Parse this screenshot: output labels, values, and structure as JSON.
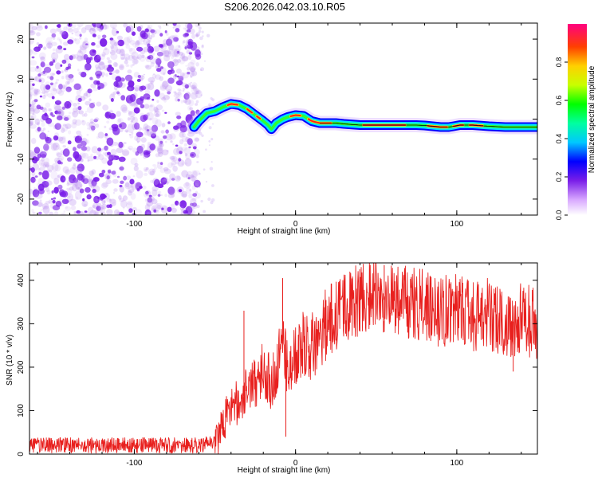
{
  "page_title": "S206.2026.042.03.10.R05",
  "colors": {
    "snr_line": "#e8201e",
    "noise": "#7a1ee8",
    "trace_outline": "#0000ff",
    "trace_fill": "#00e0ff",
    "trace_core_1": "#30ff30",
    "trace_core_2": "#ff2020"
  },
  "chart_data": [
    {
      "type": "heatmap",
      "title": "S206.2026.042.03.10.R05",
      "xlabel": "Height of straight line (km)",
      "ylabel": "Frequency (Hz)",
      "xlim": [
        -165,
        150
      ],
      "ylim": [
        -24,
        24
      ],
      "x_ticks": [
        -100,
        0,
        100
      ],
      "x_tick_labels": [
        "-100",
        "0",
        "100"
      ],
      "y_ticks": [
        20,
        10,
        0,
        -10,
        -20
      ],
      "y_tick_labels": [
        "20",
        "10",
        "0",
        "-10",
        "-20"
      ],
      "noise_region_x": [
        -165,
        -60
      ],
      "trace": {
        "x": [
          -63,
          -60,
          -55,
          -50,
          -45,
          -40,
          -35,
          -30,
          -25,
          -20,
          -17,
          -15,
          -12,
          -8,
          -5,
          0,
          5,
          10,
          15,
          20,
          25,
          30,
          40,
          50,
          60,
          70,
          75,
          80,
          85,
          90,
          95,
          98,
          102,
          110,
          120,
          130,
          140,
          150
        ],
        "y": [
          -2,
          -0.5,
          1.5,
          2.0,
          3.0,
          3.8,
          3.5,
          2.5,
          1.0,
          -0.5,
          -1.5,
          -2.5,
          -1.0,
          0,
          0.5,
          1.0,
          0.8,
          -0.5,
          -1.0,
          -1.0,
          -1.0,
          -1.2,
          -1.5,
          -1.5,
          -1.5,
          -1.5,
          -1.5,
          -1.6,
          -1.8,
          -2.0,
          -2.0,
          -1.8,
          -1.5,
          -1.5,
          -1.8,
          -2.0,
          -2.0,
          -2.0
        ]
      },
      "colorbar": {
        "label": "Normalized spectral amplitude",
        "range": [
          0,
          1
        ],
        "ticks": [
          0.0,
          0.2,
          0.4,
          0.6,
          0.8
        ],
        "tick_labels": [
          "0.0",
          "0.2",
          "0.4",
          "0.6",
          "0.8"
        ]
      }
    },
    {
      "type": "line",
      "xlabel": "Height of straight line (km)",
      "ylabel": "SNR (10 * v/v)",
      "xlim": [
        -165,
        150
      ],
      "ylim": [
        0,
        440
      ],
      "x_ticks": [
        -100,
        0,
        100
      ],
      "x_tick_labels": [
        "-100",
        "0",
        "100"
      ],
      "y_ticks": [
        0,
        100,
        200,
        300,
        400
      ],
      "y_tick_labels": [
        "0",
        "100",
        "200",
        "300",
        "400"
      ],
      "series": [
        {
          "name": "SNR",
          "x": [
            -165,
            -150,
            -120,
            -90,
            -60,
            -50,
            -45,
            -42,
            -38,
            -35,
            -30,
            -25,
            -22,
            -20,
            -15,
            -10,
            -8,
            -5,
            -2,
            0,
            5,
            10,
            15,
            20,
            25,
            30,
            35,
            40,
            45,
            50,
            60,
            70,
            80,
            90,
            100,
            110,
            120,
            130,
            140,
            150
          ],
          "y": [
            20,
            20,
            20,
            20,
            20,
            30,
            70,
            100,
            130,
            110,
            150,
            160,
            180,
            200,
            150,
            220,
            250,
            200,
            220,
            230,
            260,
            250,
            280,
            300,
            320,
            330,
            340,
            360,
            370,
            360,
            350,
            350,
            340,
            330,
            340,
            320,
            320,
            300,
            310,
            300
          ],
          "noise_band": 45,
          "spikes": [
            {
              "x": -32,
              "y": 330
            },
            {
              "x": -8,
              "y": 405
            },
            {
              "x": -6,
              "y": 40
            },
            {
              "x": 55,
              "y": 435
            },
            {
              "x": 135,
              "y": 190
            }
          ]
        }
      ]
    }
  ]
}
